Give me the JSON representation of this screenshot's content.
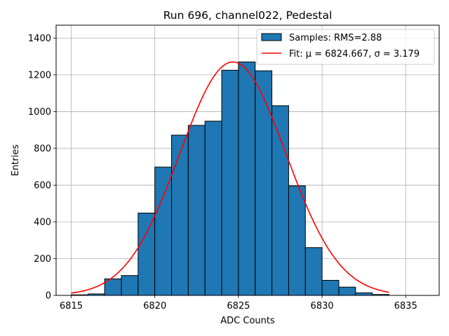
{
  "chart_data": {
    "type": "bar",
    "title": "Run 696, channel022, Pedestal",
    "xlabel": "ADC Counts",
    "ylabel": "Entries",
    "xlim": [
      6814.1,
      6837.0
    ],
    "ylim": [
      0,
      1470
    ],
    "xticks": [
      6815,
      6820,
      6825,
      6830,
      6835
    ],
    "yticks": [
      0,
      200,
      400,
      600,
      800,
      1000,
      1200,
      1400
    ],
    "grid": true,
    "legend_position": "top-right",
    "bin_edges": [
      6815,
      6816,
      6817,
      6818,
      6819,
      6820,
      6821,
      6822,
      6823,
      6824,
      6825,
      6826,
      6827,
      6828,
      6829,
      6830,
      6831,
      6832,
      6833,
      6834
    ],
    "series": [
      {
        "name": "Samples: RMS=2.88",
        "kind": "histogram",
        "color": "#1f77b4",
        "edgecolor": "#000000",
        "values": [
          3,
          8,
          90,
          108,
          448,
          698,
          872,
          925,
          948,
          1225,
          1270,
          1222,
          1032,
          596,
          260,
          82,
          45,
          14,
          5
        ]
      },
      {
        "name": "Fit: μ = 6824.667, σ = 3.179",
        "kind": "gaussian",
        "color": "#ff0000",
        "mu": 6824.667,
        "sigma": 3.179,
        "amplitude": 1270,
        "x_range": [
          6815,
          6834
        ]
      }
    ]
  }
}
